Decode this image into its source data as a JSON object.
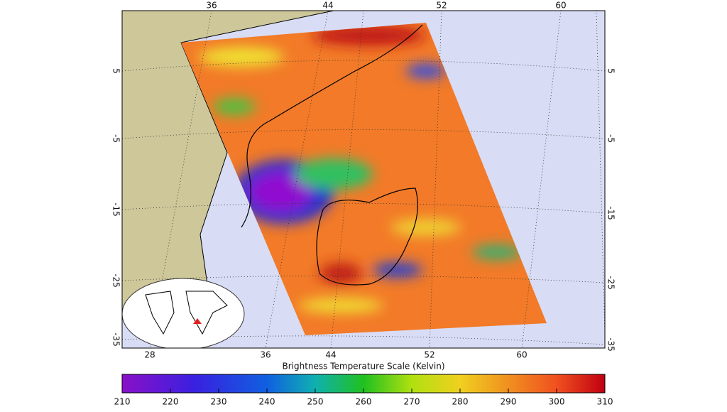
{
  "map": {
    "top_lon_labels": [
      "36",
      "44",
      "52",
      "60"
    ],
    "bottom_lon_labels": [
      "28",
      "36",
      "44",
      "52",
      "60"
    ],
    "left_lat_labels": [
      "5",
      "-5",
      "-15",
      "-25",
      "-35"
    ],
    "right_lat_labels": [
      "5",
      "-5",
      "-15",
      "-25",
      "-35"
    ]
  },
  "colorbar": {
    "title": "Brightness Temperature Scale (Kelvin)",
    "ticks": [
      210,
      220,
      230,
      240,
      250,
      260,
      270,
      280,
      290,
      300,
      310
    ]
  }
}
